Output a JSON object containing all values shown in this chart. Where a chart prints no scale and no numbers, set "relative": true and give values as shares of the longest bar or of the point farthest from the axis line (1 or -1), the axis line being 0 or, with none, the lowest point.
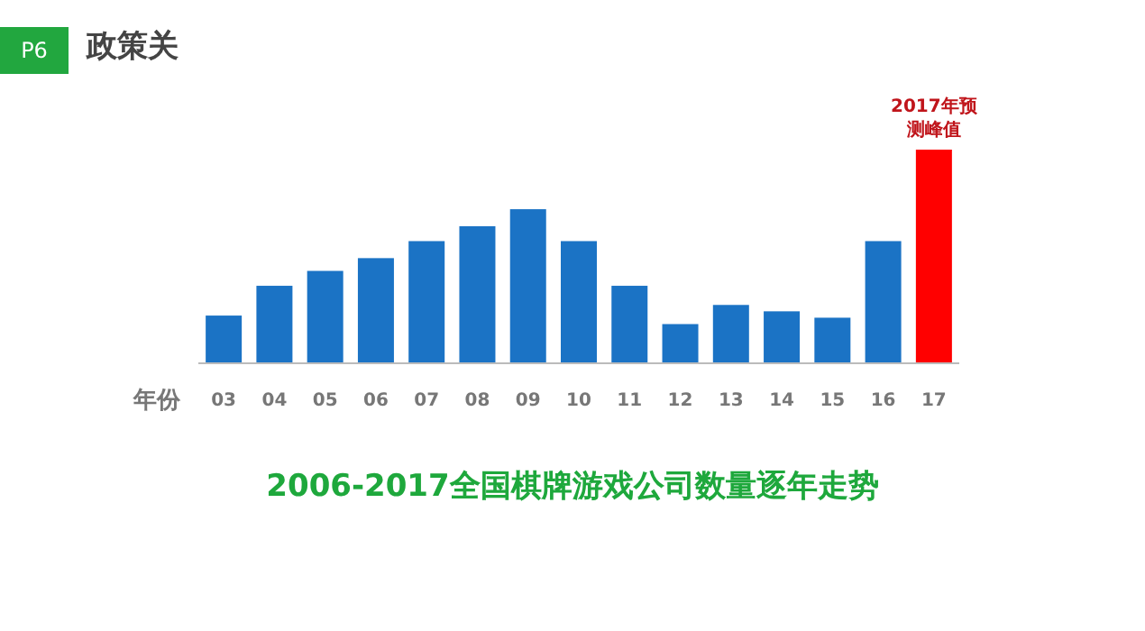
{
  "chart_data": {
    "type": "bar",
    "title": "政策关",
    "subtitle": "2006-2017全国棋牌游戏公司数量逐年走势",
    "xlabel": "年份",
    "relative": true,
    "categories": [
      "03",
      "04",
      "05",
      "06",
      "07",
      "08",
      "09",
      "10",
      "11",
      "12",
      "13",
      "14",
      "15",
      "16",
      "17"
    ],
    "values": [
      0.22,
      0.36,
      0.43,
      0.49,
      0.57,
      0.64,
      0.72,
      0.57,
      0.36,
      0.18,
      0.27,
      0.24,
      0.21,
      0.57,
      1
    ],
    "colors": [
      "#1b73c5",
      "#1b73c5",
      "#1b73c5",
      "#1b73c5",
      "#1b73c5",
      "#1b73c5",
      "#1b73c5",
      "#1b73c5",
      "#1b73c5",
      "#1b73c5",
      "#1b73c5",
      "#1b73c5",
      "#1b73c5",
      "#1b73c5",
      "#ff0000"
    ],
    "annotations": [
      "P6",
      {
        "text": "2017年预测峰值",
        "x": "17",
        "y": 1
      }
    ]
  }
}
